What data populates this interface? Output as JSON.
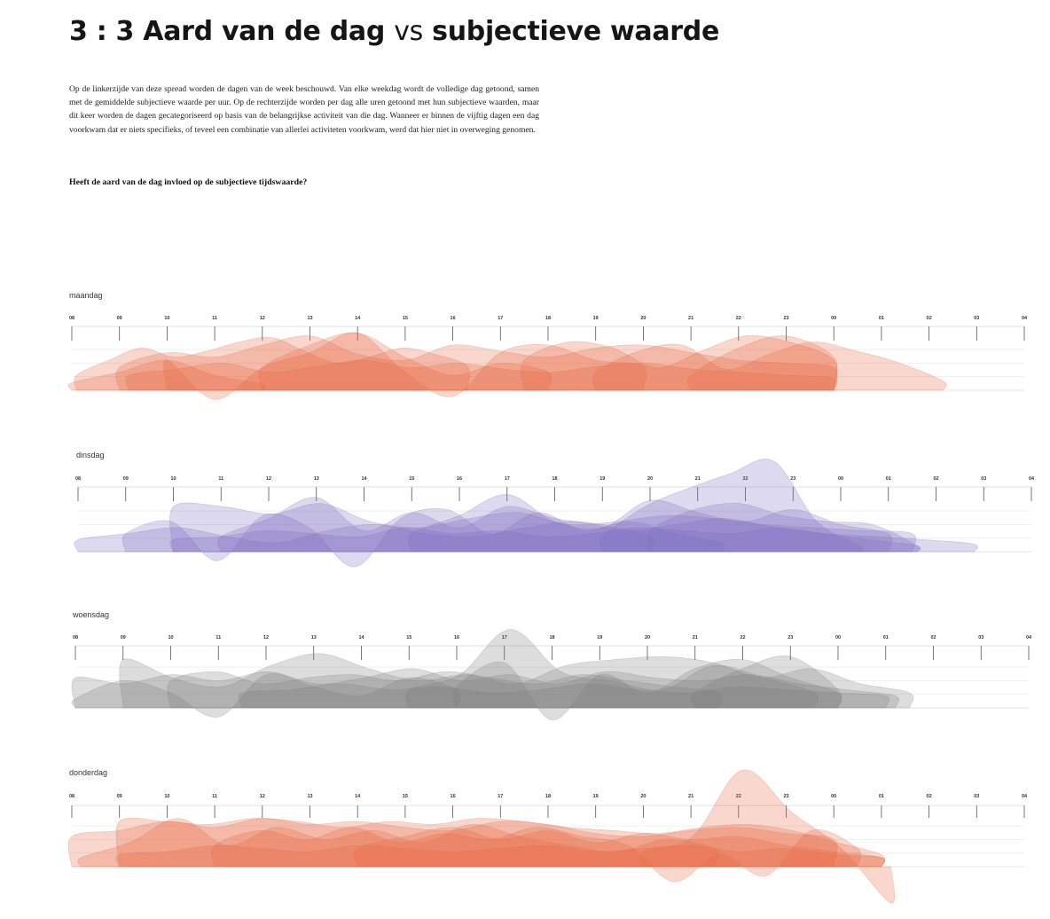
{
  "header": {
    "title_prefix": "3 : 3",
    "title_part1": "Aard van de dag",
    "title_vs": "vs",
    "title_part2": "subjectieve waarde"
  },
  "intro_text": "Op de linkerzijde van deze spread worden de dagen van de week beschouwd. Van elke weekdag wordt de volledige dag getoond, samen met de gemiddelde subjectieve waarde per uur. Op de rechterzijde worden per dag alle uren getoond met hun subjectieve waarden, maar dit keer worden de dagen gecategoriseerd op basis van de belangrijkse activiteit van die dag. Wanneer er binnen de vijftig dagen een dag voorkwam dat er niets specifieks, of teveel een combinatie van allerlei activiteten voorkwam, werd dat hier niet in overweging genomen.",
  "question": "Heeft de aard van de dag invloed op de subjectieve tijdswaarde?",
  "chart_data": {
    "type": "area",
    "x_hours": [
      "08",
      "09",
      "10",
      "11",
      "12",
      "13",
      "14",
      "15",
      "16",
      "17",
      "18",
      "19",
      "20",
      "21",
      "22",
      "23",
      "00",
      "01",
      "02",
      "03",
      "04"
    ],
    "grid": true,
    "panels": [
      {
        "label": "maandag",
        "color": "#e8643c",
        "series": [
          {
            "start": 0.1,
            "end": 8.3,
            "values": [
              1,
              2,
              2.8,
              2.2,
              2.6,
              3.2,
              3.5,
              2.6,
              1.8,
              2.2,
              2.8,
              2.4,
              1.6
            ]
          },
          {
            "start": 1.0,
            "end": 16.0,
            "values": [
              1.5,
              2.5,
              2.2,
              3.0,
              3.6,
              2.4,
              2.0,
              3.0,
              2.6,
              2.2,
              2.8,
              3.0,
              2.5,
              2.0,
              1.8,
              1.5
            ]
          },
          {
            "start": 0.0,
            "end": 4.0,
            "values": [
              0.5,
              1.2,
              2.0,
              1.0,
              0.4
            ]
          },
          {
            "start": 2.0,
            "end": 12.0,
            "values": [
              2.0,
              -0.6,
              1.5,
              2.5,
              3.8,
              1.2,
              -0.4,
              2.5,
              3.0,
              2.0,
              1.6
            ]
          },
          {
            "start": 4.0,
            "end": 10.0,
            "values": [
              1.5,
              3.0,
              3.8,
              2.2,
              1.0,
              1.8,
              1.2
            ]
          },
          {
            "start": 9.5,
            "end": 16.0,
            "values": [
              2.0,
              3.2,
              2.8,
              1.5,
              2.6,
              3.6,
              3.2,
              2.0
            ]
          },
          {
            "start": 11.0,
            "end": 18.3,
            "values": [
              1.2,
              2.6,
              3.0,
              1.4,
              2.4,
              3.2,
              2.6,
              1.8,
              0.6
            ]
          },
          {
            "start": 13.0,
            "end": 16.0,
            "values": [
              1.0,
              2.8,
              3.6,
              2.2
            ]
          },
          {
            "start": 1.2,
            "end": 16.0,
            "values": [
              1.0,
              1.4,
              1.8,
              1.2,
              1.6,
              2.0,
              1.5,
              1.8,
              1.4,
              1.2,
              1.6,
              1.8,
              1.4,
              1.2,
              1.0,
              0.8
            ]
          }
        ]
      },
      {
        "label": "dinsdag",
        "color": "#7a6cc0",
        "series": [
          {
            "start": 0.0,
            "end": 18.8,
            "values": [
              0.8,
              1.2,
              1.6,
              1.0,
              0.6,
              1.4,
              1.8,
              1.2,
              1.0,
              1.6,
              2.0,
              1.4,
              1.8,
              2.2,
              1.6,
              1.2,
              1.0,
              0.8,
              0.5
            ]
          },
          {
            "start": 1.0,
            "end": 13.5,
            "values": [
              1.2,
              2.0,
              -0.6,
              2.4,
              1.6,
              -1.0,
              2.2,
              2.8,
              1.2,
              2.6,
              1.4,
              2.0,
              1.2,
              0.6
            ]
          },
          {
            "start": 2.0,
            "end": 17.5,
            "values": [
              3.0,
              3.0,
              2.5,
              3.2,
              2.0,
              1.6,
              2.2,
              2.6,
              1.8,
              2.0,
              2.4,
              2.2,
              1.8,
              1.6,
              1.4,
              1.2
            ]
          },
          {
            "start": 3.0,
            "end": 12.0,
            "values": [
              1.0,
              2.2,
              3.6,
              1.4,
              2.6,
              1.6,
              3.0,
              2.2,
              1.8,
              1.0
            ]
          },
          {
            "start": 11.0,
            "end": 16.4,
            "values": [
              1.0,
              3.0,
              4.2,
              5.2,
              6.0,
              2.0,
              0.4
            ]
          },
          {
            "start": 7.0,
            "end": 17.0,
            "values": [
              1.2,
              2.4,
              3.8,
              2.0,
              1.6,
              3.4,
              2.6,
              2.0,
              2.8,
              1.8,
              1.2
            ]
          },
          {
            "start": 12.0,
            "end": 17.6,
            "values": [
              1.4,
              2.8,
              3.2,
              2.4,
              2.0,
              1.8,
              0.4
            ]
          },
          {
            "start": 2.0,
            "end": 17.6,
            "values": [
              0.8,
              1.0,
              1.4,
              1.2,
              1.0,
              1.6,
              1.2,
              1.4,
              1.0,
              1.2,
              1.6,
              1.4,
              1.2,
              1.6,
              1.2,
              0.8,
              0.4
            ]
          }
        ]
      },
      {
        "label": "woensdag",
        "color": "#7d7d7d",
        "series": [
          {
            "start": 0.0,
            "end": 17.2,
            "values": [
              2.0,
              1.6,
              2.2,
              1.8,
              2.4,
              1.6,
              2.0,
              2.6,
              1.8,
              2.2,
              1.6,
              2.4,
              2.0,
              1.8,
              2.2,
              1.6,
              1.2,
              0.8
            ]
          },
          {
            "start": 0.0,
            "end": 8.0,
            "values": [
              0.6,
              1.8,
              1.0,
              -0.6,
              2.2,
              1.4,
              0.8,
              2.0,
              1.2
            ]
          },
          {
            "start": 1.0,
            "end": 17.5,
            "values": [
              3.2,
              2.0,
              1.4,
              2.8,
              3.6,
              2.6,
              1.8,
              2.2,
              1.6,
              2.8,
              3.2,
              3.4,
              3.0,
              2.0,
              2.6,
              1.6,
              1.0
            ]
          },
          {
            "start": 7.0,
            "end": 15.5,
            "values": [
              1.2,
              2.2,
              5.2,
              2.4,
              1.8,
              1.2,
              2.8,
              2.0,
              1.0
            ]
          },
          {
            "start": 8.0,
            "end": 16.0,
            "values": [
              1.4,
              3.0,
              -0.8,
              2.2,
              1.0,
              2.6,
              3.2,
              2.0,
              1.0
            ]
          },
          {
            "start": 2.0,
            "end": 13.5,
            "values": [
              1.8,
              2.4,
              1.6,
              2.0,
              2.2,
              1.8,
              2.4,
              2.0,
              1.6,
              2.2,
              1.8,
              1.4,
              1.0
            ]
          },
          {
            "start": 3.5,
            "end": 17.0,
            "values": [
              1.0,
              1.2,
              1.6,
              1.2,
              1.4,
              1.0,
              1.2,
              1.6,
              1.2,
              1.0,
              1.4,
              1.2,
              1.0,
              0.8
            ]
          },
          {
            "start": 13.0,
            "end": 16.0,
            "values": [
              1.0,
              2.6,
              3.4,
              1.2
            ]
          }
        ]
      },
      {
        "label": "donderdag",
        "color": "#e8643c",
        "series": [
          {
            "start": 0.0,
            "end": 16.0,
            "values": [
              2.0,
              2.4,
              3.0,
              2.6,
              3.2,
              2.8,
              3.0,
              2.6,
              2.4,
              3.0,
              2.8,
              2.2,
              2.0,
              2.4,
              2.6,
              2.2,
              1.8
            ]
          },
          {
            "start": 1.0,
            "end": 17.0,
            "values": [
              3.0,
              3.0,
              2.8,
              3.2,
              3.0,
              2.6,
              3.0,
              2.8,
              3.2,
              3.0,
              2.6,
              2.4,
              2.2,
              2.6,
              2.8,
              2.4,
              1.6,
              0.8
            ]
          },
          {
            "start": 0.2,
            "end": 13.5,
            "values": [
              0.6,
              1.6,
              3.2,
              1.4,
              2.6,
              1.8,
              2.4,
              1.6,
              2.8,
              2.0,
              1.4,
              1.0,
              1.8,
              1.2
            ]
          },
          {
            "start": 3.0,
            "end": 16.5,
            "values": [
              1.4,
              2.4,
              1.8,
              2.6,
              1.6,
              2.2,
              1.8,
              2.6,
              2.0,
              1.4,
              -1.0,
              0.8,
              -0.6,
              2.4,
              1.2
            ]
          },
          {
            "start": 12.0,
            "end": 17.2,
            "values": [
              1.0,
              2.0,
              6.4,
              3.6,
              1.2,
              -2.4
            ]
          },
          {
            "start": 6.0,
            "end": 17.0,
            "values": [
              1.2,
              2.0,
              2.6,
              1.8,
              2.4,
              1.6,
              2.2,
              1.8,
              2.0,
              1.4,
              1.0,
              0.6
            ]
          },
          {
            "start": 1.0,
            "end": 17.0,
            "values": [
              0.8,
              1.0,
              1.4,
              1.2,
              1.0,
              1.4,
              1.2,
              1.0,
              1.2,
              1.4,
              1.0,
              1.2,
              1.4,
              1.0,
              1.2,
              0.8,
              0.6
            ]
          }
        ]
      }
    ]
  }
}
